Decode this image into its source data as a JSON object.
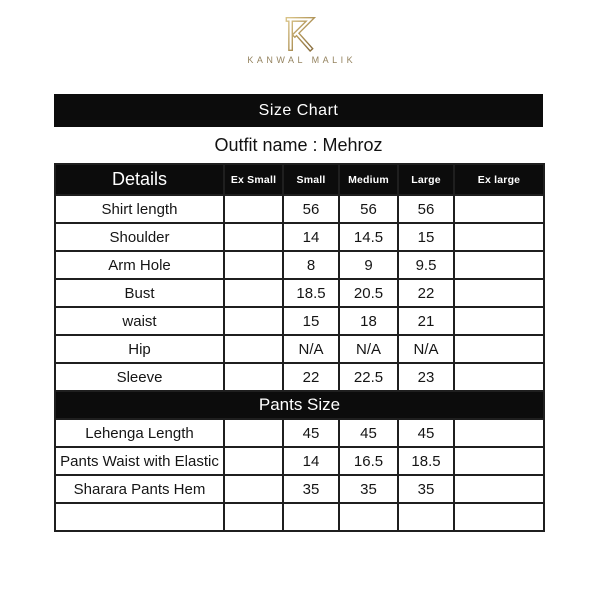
{
  "brand": {
    "name": "KANWAL MALIK",
    "gold_light": "#d8c286",
    "gold_dark": "#8c7140",
    "wordmark_color": "#94835f"
  },
  "banner": {
    "title": "Size Chart",
    "background": "#0c0c0c",
    "text_color": "#ffffff"
  },
  "outfit": {
    "text": "Outfit name : Mehroz"
  },
  "table": {
    "columns": [
      "Details",
      "Ex Small",
      "Small",
      "Medium",
      "Large",
      "Ex large"
    ],
    "rows": [
      {
        "type": "data",
        "cells": [
          "Shirt length",
          "",
          "56",
          "56",
          "56",
          ""
        ]
      },
      {
        "type": "data",
        "cells": [
          "Shoulder",
          "",
          "14",
          "14.5",
          "15",
          ""
        ]
      },
      {
        "type": "data",
        "cells": [
          "Arm Hole",
          "",
          "8",
          "9",
          "9.5",
          ""
        ]
      },
      {
        "type": "data",
        "cells": [
          "Bust",
          "",
          "18.5",
          "20.5",
          "22",
          ""
        ]
      },
      {
        "type": "data",
        "cells": [
          "waist",
          "",
          "15",
          "18",
          "21",
          ""
        ]
      },
      {
        "type": "data",
        "cells": [
          "Hip",
          "",
          "N/A",
          "N/A",
          "N/A",
          ""
        ]
      },
      {
        "type": "data",
        "cells": [
          "Sleeve",
          "",
          "22",
          "22.5",
          "23",
          ""
        ]
      },
      {
        "type": "section",
        "label": "Pants Size"
      },
      {
        "type": "data",
        "cells": [
          "Lehenga Length",
          "",
          "45",
          "45",
          "45",
          ""
        ]
      },
      {
        "type": "data",
        "cells": [
          "Pants Waist with Elastic",
          "",
          "14",
          "16.5",
          "18.5",
          ""
        ]
      },
      {
        "type": "data",
        "cells": [
          "Sharara Pants Hem",
          "",
          "35",
          "35",
          "35",
          ""
        ]
      },
      {
        "type": "data",
        "cells": [
          "",
          "",
          "",
          "",
          "",
          ""
        ]
      }
    ]
  }
}
